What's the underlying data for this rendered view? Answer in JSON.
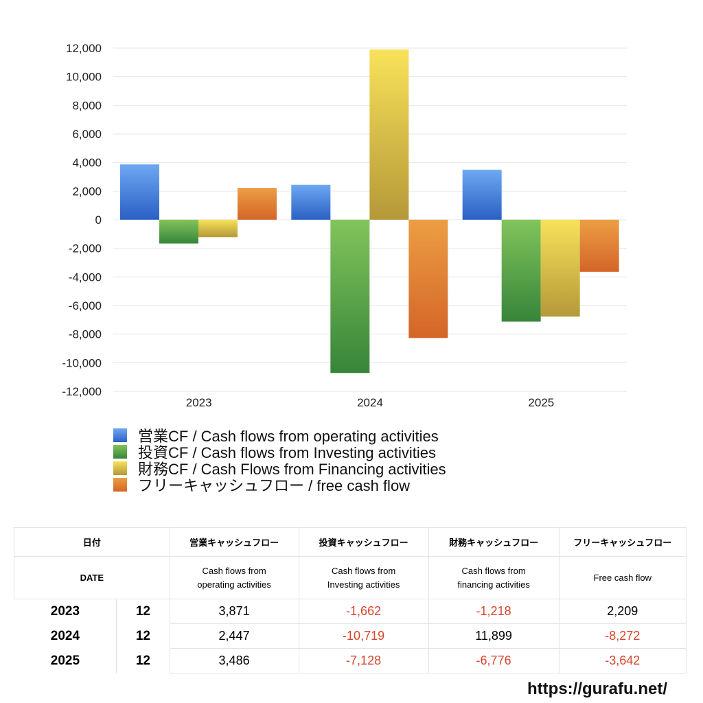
{
  "chart_data": {
    "type": "bar",
    "categories": [
      "2023",
      "2024",
      "2025"
    ],
    "series": [
      {
        "name": "営業CF / Cash flows from operating activities",
        "values": [
          3871,
          2447,
          3486
        ],
        "color_top": "#6ea8f2",
        "color_bottom": "#2a60c4"
      },
      {
        "name": "投資CF / Cash flows from Investing activities",
        "values": [
          -1662,
          -10719,
          -7128
        ],
        "color_top": "#82c45c",
        "color_bottom": "#37853a"
      },
      {
        "name": "財務CF / Cash Flows from Financing activities",
        "values": [
          -1218,
          11899,
          -6776
        ],
        "color_top": "#f8e25a",
        "color_bottom": "#b59838"
      },
      {
        "name": "フリーキャッシュフロー / free cash flow",
        "values": [
          2209,
          -8272,
          -3642
        ],
        "color_top": "#ec9e44",
        "color_bottom": "#d36528"
      }
    ],
    "ylim": [
      -12000,
      12000
    ],
    "yticks": [
      12000,
      10000,
      8000,
      6000,
      4000,
      2000,
      0,
      -2000,
      -4000,
      -6000,
      -8000,
      -10000,
      -12000
    ],
    "ytick_labels": [
      "12,000",
      "10,000",
      "8,000",
      "6,000",
      "4,000",
      "2,000",
      "0",
      "-2,000",
      "-4,000",
      "-6,000",
      "-8,000",
      "-10,000",
      "-12,000"
    ],
    "grid": true,
    "legend_position": "bottom-left"
  },
  "table": {
    "header_jp": [
      "日付",
      "営業キャッシュフロー",
      "投資キャッシュフロー",
      "財務キャッシュフロー",
      "フリーキャッシュフロー"
    ],
    "header_en": [
      "DATE",
      "Cash flows from operating activities",
      "Cash flows from Investing activities",
      "Cash flows from financing activities",
      "Free cash flow"
    ],
    "rows": [
      {
        "year": "2023",
        "month": "12",
        "values": [
          "3,871",
          "-1,662",
          "-1,218",
          "2,209"
        ]
      },
      {
        "year": "2024",
        "month": "12",
        "values": [
          "2,447",
          "-10,719",
          "11,899",
          "-8,272"
        ]
      },
      {
        "year": "2025",
        "month": "12",
        "values": [
          "3,486",
          "-7,128",
          "-6,776",
          "-3,642"
        ]
      }
    ]
  },
  "footer": {
    "url": "https://gurafu.net/"
  }
}
